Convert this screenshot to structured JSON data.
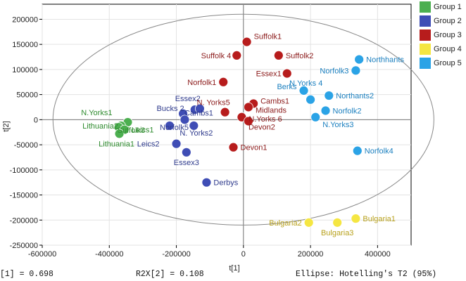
{
  "chart_data": {
    "type": "scatter",
    "xlabel": "t[1]",
    "ylabel": "t[2]",
    "xlim": [
      -600000,
      500000
    ],
    "ylim": [
      -250000,
      230000
    ],
    "xticks": [
      -600000,
      -400000,
      -200000,
      0,
      200000,
      400000
    ],
    "xtick_labels": [
      "-600000",
      "-400000",
      "-200000",
      "0",
      "200000",
      "400000"
    ],
    "yticks": [
      -250000,
      -200000,
      -150000,
      -100000,
      -50000,
      0,
      50000,
      100000,
      150000,
      200000
    ],
    "ytick_labels": [
      "-250000",
      "-200000",
      "-150000",
      "-100000",
      "-50000",
      "0",
      "50000",
      "100000",
      "150000",
      "200000"
    ],
    "grid": true,
    "legend_position": "top-right",
    "ellipse": {
      "semi_axis_x": 568000,
      "semi_axis_y": 210000
    },
    "series": [
      {
        "name": "Group 1",
        "color": "#4CAF50",
        "label_color": "#2E8B2E",
        "points": [
          {
            "label": "N.Yorks1",
            "x": -345000,
            "y": -5000
          },
          {
            "label": "Lithuania2",
            "x": -365000,
            "y": -12000
          },
          {
            "label": "Suffolk3",
            "x": -372000,
            "y": -15000
          },
          {
            "label": "Leics1",
            "x": -355000,
            "y": -20000
          },
          {
            "label": "Lithuania1",
            "x": -370000,
            "y": -28000
          }
        ]
      },
      {
        "name": "Group 2",
        "color": "#3F4DB5",
        "label_color": "#2E3A8C",
        "points": [
          {
            "label": "Essex2",
            "x": -145000,
            "y": 20000
          },
          {
            "label": "Bucks 2",
            "x": -180000,
            "y": 12000
          },
          {
            "label": "Cambs1",
            "x": -175000,
            "y": 0
          },
          {
            "label": "Norfolk5",
            "x": -220000,
            "y": -12000
          },
          {
            "label": "N. Yorks2",
            "x": -148000,
            "y": -12000
          },
          {
            "label": "Leics2",
            "x": -200000,
            "y": -48000
          },
          {
            "label": "Essex3",
            "x": -170000,
            "y": -65000
          },
          {
            "label": "Derbys",
            "x": -110000,
            "y": -125000
          },
          {
            "label": "",
            "x": -130000,
            "y": 22000
          }
        ]
      },
      {
        "name": "Group 3",
        "color": "#B71C1C",
        "label_color": "#8B1A1A",
        "points": [
          {
            "label": "Suffolk1",
            "x": 10000,
            "y": 155000
          },
          {
            "label": "Suffolk2",
            "x": 105000,
            "y": 128000
          },
          {
            "label": "Suffolk 4",
            "x": -20000,
            "y": 128000
          },
          {
            "label": "Essex1",
            "x": 130000,
            "y": 92000
          },
          {
            "label": "Norfolk1",
            "x": -60000,
            "y": 75000
          },
          {
            "label": "N. Yorks5",
            "x": -55000,
            "y": 15000
          },
          {
            "label": "Cambs1",
            "x": 30000,
            "y": 32000
          },
          {
            "label": "Midlands",
            "x": 15000,
            "y": 25000
          },
          {
            "label": "N.Yorks 6",
            "x": -5000,
            "y": 5000
          },
          {
            "label": "Devon2",
            "x": 15000,
            "y": -3000
          },
          {
            "label": "Devon1",
            "x": -30000,
            "y": -55000
          }
        ]
      },
      {
        "name": "Group 4",
        "color": "#F5E642",
        "label_color": "#B8A11C",
        "points": [
          {
            "label": "Bulgaria2",
            "x": 195000,
            "y": -205000
          },
          {
            "label": "Bulgaria3",
            "x": 280000,
            "y": -205000
          },
          {
            "label": "Bulgaria1",
            "x": 335000,
            "y": -197000
          }
        ]
      },
      {
        "name": "Group 5",
        "color": "#2BA3E6",
        "label_color": "#1A7FBF",
        "points": [
          {
            "label": "Northhants",
            "x": 345000,
            "y": 120000
          },
          {
            "label": "Norfolk3",
            "x": 335000,
            "y": 98000
          },
          {
            "label": "Berks",
            "x": 180000,
            "y": 58000
          },
          {
            "label": "N.Yorks 4",
            "x": 200000,
            "y": 40000
          },
          {
            "label": "Northants2",
            "x": 255000,
            "y": 48000
          },
          {
            "label": "Norfolk2",
            "x": 245000,
            "y": 18000
          },
          {
            "label": "N.Yorks3",
            "x": 215000,
            "y": 5000
          },
          {
            "label": "Norfolk4",
            "x": 340000,
            "y": -62000
          }
        ]
      }
    ]
  },
  "footer": {
    "r2x1": "[1] = 0.698",
    "r2x2": "R2X[2] = 0.108",
    "ellipse": "Ellipse: Hotelling's T2 (95%)"
  }
}
